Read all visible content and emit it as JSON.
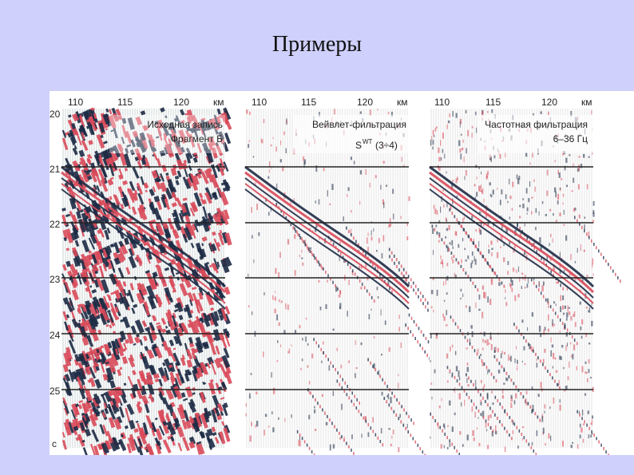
{
  "slide": {
    "title": "Примеры"
  },
  "figure": {
    "y_axis_ticks": [
      "20",
      "21",
      "22",
      "23",
      "24",
      "25",
      "с"
    ],
    "panels": [
      {
        "id": "raw",
        "x_ticks": [
          "110",
          "115",
          "120"
        ],
        "x_unit": "км",
        "caption_lines": [
          "Исходная запись",
          "Фрагмент Б"
        ],
        "noise": "heavy"
      },
      {
        "id": "wavelet",
        "x_ticks": [
          "110",
          "115",
          "120"
        ],
        "x_unit": "км",
        "caption_lines": [
          "Вейвлет-фильтрация",
          "S",
          "WT",
          "(3÷4)"
        ],
        "noise": "light"
      },
      {
        "id": "freq",
        "x_ticks": [
          "110",
          "115",
          "120"
        ],
        "x_unit": "км",
        "caption_lines": [
          "Частотная фильтрация",
          "6–36 Гц"
        ],
        "noise": "medium"
      }
    ],
    "colors": {
      "positive": "#d94a5a",
      "negative": "#1c2a44",
      "grid": "#222222",
      "slide_bg": "#cfd0fb"
    }
  }
}
